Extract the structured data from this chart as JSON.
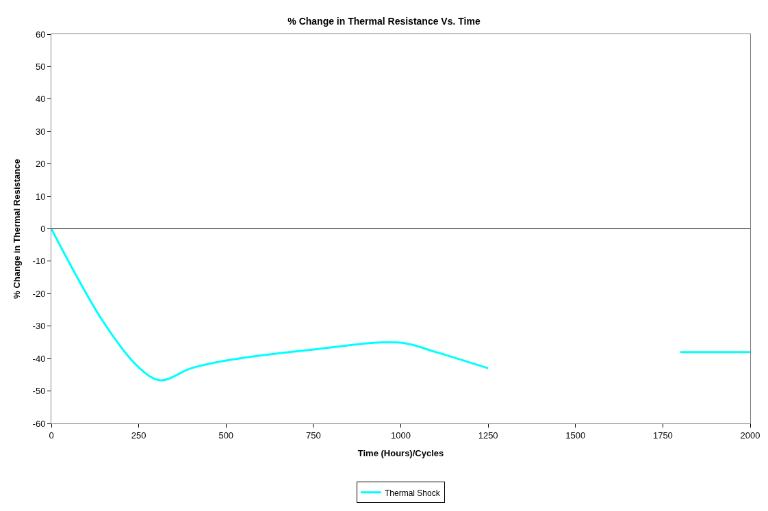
{
  "chart_data": {
    "type": "line",
    "title": "% Change in Thermal Resistance Vs. Time",
    "xlabel": "Time (Hours)/Cycles",
    "ylabel": "% Change in Thermal Resistance",
    "xlim": [
      0,
      2000
    ],
    "xticks": [
      0,
      250,
      500,
      750,
      1000,
      1250,
      1500,
      1750,
      2000
    ],
    "ylim": [
      -60,
      60
    ],
    "yticks": [
      -60,
      -50,
      -40,
      -30,
      -20,
      -10,
      0,
      10,
      20,
      30,
      40,
      50,
      60
    ],
    "x": [
      0,
      150,
      250,
      312,
      400,
      500,
      750,
      1000,
      1100,
      1250,
      1500,
      1800,
      2000
    ],
    "series": [
      {
        "name": "Thermal Shock",
        "color": "#00ffff",
        "values": [
          0,
          -28.9,
          -42.7,
          -46.7,
          -43,
          -40.6,
          -37.2,
          -35.1,
          -38,
          -43,
          null,
          -38,
          -38
        ]
      }
    ],
    "ref_lines": [
      {
        "axis": "y",
        "value": 0,
        "color": "#000000"
      }
    ],
    "legend": "bottom",
    "marker": "none",
    "line_style": "solid"
  }
}
